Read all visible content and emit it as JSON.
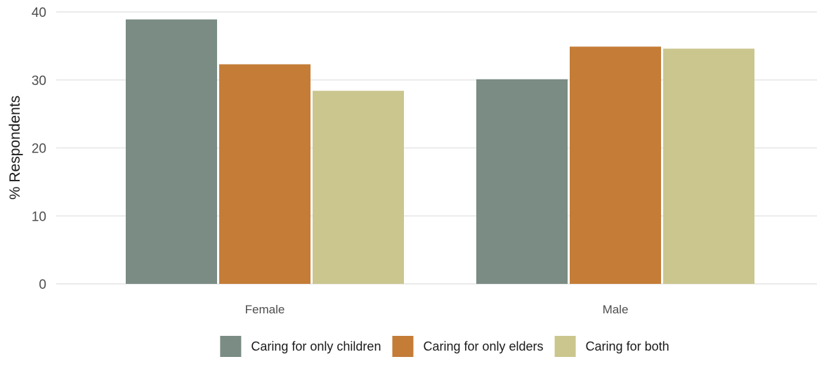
{
  "colors": {
    "background": "#ffffff",
    "grid": "#ebebeb"
  },
  "chart_data": {
    "type": "bar",
    "categories": [
      "Female",
      "Male"
    ],
    "series": [
      {
        "name": "Caring for only children",
        "color": "#7a8c84",
        "values": [
          38.9,
          30.1
        ]
      },
      {
        "name": "Caring for only elders",
        "color": "#c47c37",
        "values": [
          32.3,
          34.9
        ]
      },
      {
        "name": "Caring for both",
        "color": "#cbc68e",
        "values": [
          28.4,
          34.6
        ]
      }
    ],
    "title": "",
    "xlabel": "",
    "ylabel": "% Respondents",
    "ylim": [
      0,
      40
    ],
    "yticks": [
      0,
      10,
      20,
      30,
      40
    ],
    "grid": true,
    "legend_position": "bottom"
  }
}
